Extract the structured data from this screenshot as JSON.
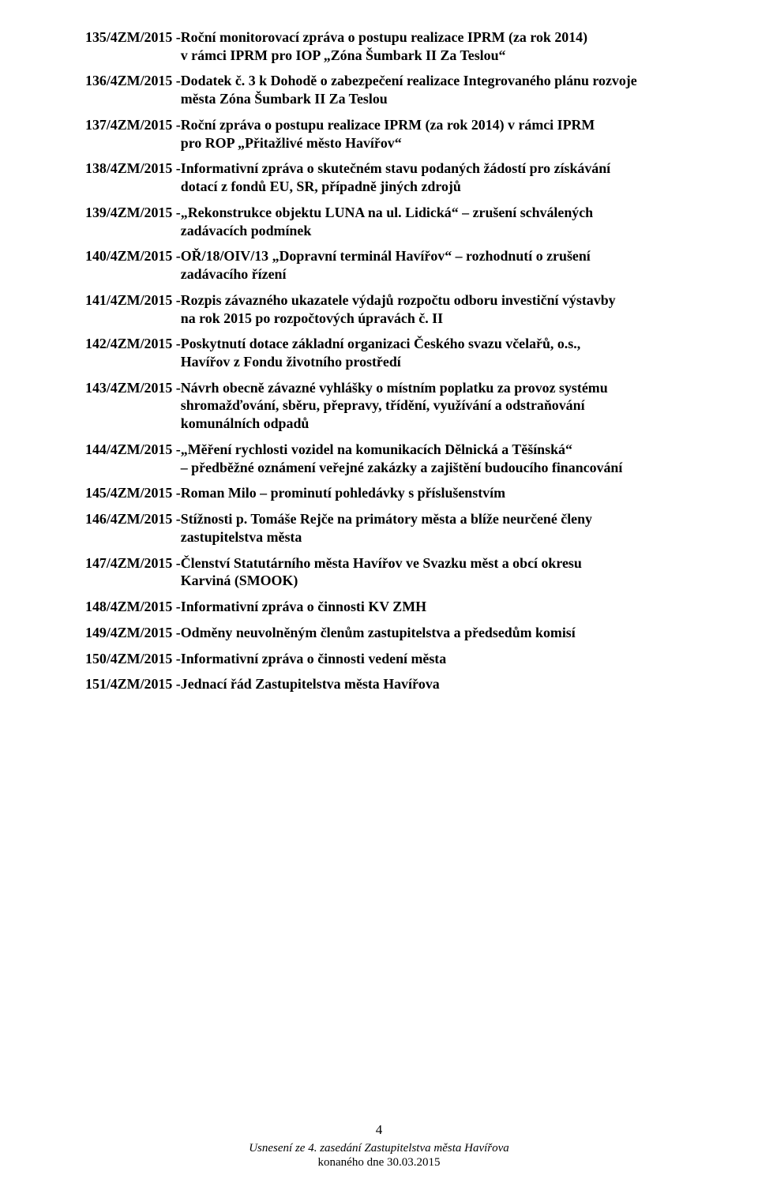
{
  "items": [
    {
      "code": "135/4ZM/2015 - ",
      "l1": "Roční monitorovací zpráva o postupu realizace IPRM (za rok 2014)",
      "l2": "v rámci  IPRM pro IOP „Zóna Šumbark II Za Teslou“"
    },
    {
      "code": "136/4ZM/2015 - ",
      "l1": "Dodatek č. 3 k Dohodě o zabezpečení realizace Integrovaného plánu rozvoje",
      "l2": "města Zóna Šumbark II Za  Teslou"
    },
    {
      "code": "137/4ZM/2015 - ",
      "l1": "Roční zpráva o postupu realizace IPRM (za rok 2014) v rámci IPRM",
      "l2": "pro ROP „Přitažlivé město Havířov“"
    },
    {
      "code": "138/4ZM/2015 - ",
      "l1": "Informativní zpráva o skutečném stavu podaných žádostí pro získávání",
      "l2": "dotací z fondů EU, SR, případně jiných zdrojů"
    },
    {
      "code": "139/4ZM/2015 - ",
      "l1": "„Rekonstrukce objektu LUNA na ul. Lidická“ – zrušení schválených",
      "l2": "zadávacích podmínek"
    },
    {
      "code": "140/4ZM/2015 - ",
      "l1": "OŘ/18/OIV/13 „Dopravní terminál Havířov“ – rozhodnutí o zrušení",
      "l2": "zadávacího řízení"
    },
    {
      "code": "141/4ZM/2015 - ",
      "l1": "Rozpis závazného ukazatele výdajů rozpočtu odboru investiční výstavby",
      "l2": "na rok 2015 po rozpočtových úpravách č. II"
    },
    {
      "code": "142/4ZM/2015 - ",
      "l1": "Poskytnutí  dotace  základní organizaci Českého svazu včelařů, o.s.,",
      "l2": "Havířov z Fondu životního prostředí"
    },
    {
      "code": "143/4ZM/2015 - ",
      "l1": "Návrh obecně závazné vyhlášky o místním poplatku za provoz systému",
      "l2": "shromažďování, sběru, přepravy, třídění, využívání a odstraňování",
      "l3": "komunálních odpadů"
    },
    {
      "code": "144/4ZM/2015 - ",
      "l1": "„Měření rychlosti vozidel na komunikacích Dělnická a Těšínská“",
      "l2": "– předběžné oznámení veřejné zakázky a zajištění budoucího financování"
    },
    {
      "code": "145/4ZM/2015 - ",
      "l1": "Roman Milo – prominutí pohledávky s příslušenstvím"
    },
    {
      "code": "146/4ZM/2015 - ",
      "l1": "Stížnosti p. Tomáše Rejče na primátory města a blíže neurčené členy",
      "l2": "zastupitelstva města"
    },
    {
      "code": "147/4ZM/2015 - ",
      "l1": "Členství Statutárního města Havířov ve Svazku měst a obcí okresu",
      "l2": "Karviná (SMOOK)"
    },
    {
      "code": "148/4ZM/2015 - ",
      "l1": "Informativní zpráva o činnosti KV ZMH"
    },
    {
      "code": "149/4ZM/2015 - ",
      "l1": "Odměny neuvolněným členům zastupitelstva a předsedům komisí"
    },
    {
      "code": "150/4ZM/2015 - ",
      "l1": "Informativní zpráva o činnosti vedení města"
    },
    {
      "code": "151/4ZM/2015 - ",
      "l1": "Jednací řád Zastupitelstva města Havířova"
    }
  ],
  "footer": {
    "pagenum": "4",
    "line1": "Usnesení ze 4. zasedání Zastupitelstva města Havířova",
    "line2": "konaného dne 30.03.2015"
  }
}
